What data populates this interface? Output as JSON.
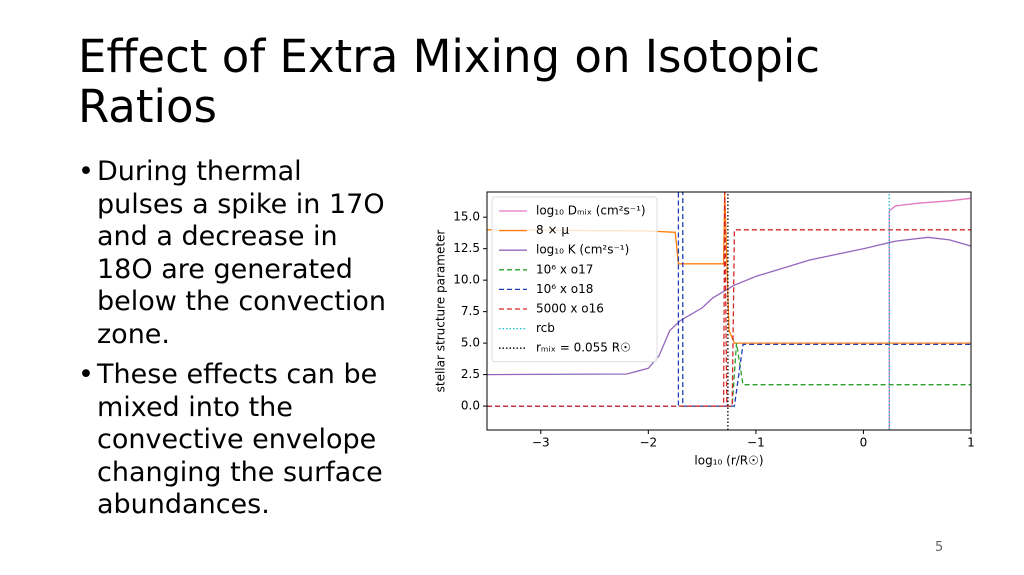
{
  "title": "Effect of Extra Mixing on Isotopic Ratios",
  "bullets": [
    "During thermal pulses a spike in 17O and a decrease in 18O are generated below the convection zone.",
    "These effects can be mixed into the convective envelope changing the surface abundances."
  ],
  "page_number": "5",
  "chart_data": {
    "type": "line",
    "xlabel": "log₁₀ (r/R☉)",
    "ylabel": "stellar structure parameter",
    "xlim": [
      -3.5,
      1
    ],
    "ylim": [
      -1.9,
      17.0
    ],
    "xticks": [
      {
        "value": -3,
        "label": "−3"
      },
      {
        "value": -2,
        "label": "−2"
      },
      {
        "value": -1,
        "label": "−1"
      },
      0,
      1
    ],
    "yticks": [
      {
        "value": 0,
        "label": "0.0"
      },
      2.5,
      {
        "value": 5,
        "label": "5.0"
      },
      7.5,
      {
        "value": 10,
        "label": "10.0"
      },
      12.5,
      {
        "value": 15,
        "label": "15.0"
      }
    ],
    "legend": "upper left",
    "series": [
      {
        "name": "log₁₀ Dₘᵢₓ (cm²s⁻¹)",
        "color": "#e377c2",
        "style": "solid",
        "x": [
          0.24,
          0.24,
          0.3,
          0.5,
          0.8,
          1.0
        ],
        "values": [
          -1.9,
          15.5,
          15.9,
          16.1,
          16.3,
          16.5
        ]
      },
      {
        "name": "8 × μ",
        "color": "#ff7f0e",
        "style": "solid",
        "x": [
          -3.5,
          -2.0,
          -1.75,
          -1.72,
          -1.3,
          -1.29,
          -1.25,
          -1.2,
          1.0
        ],
        "values": [
          14.0,
          13.9,
          13.8,
          11.3,
          11.3,
          17.0,
          6.0,
          5.0,
          5.0
        ]
      },
      {
        "name": "log₁₀ K (cm²s⁻¹)",
        "color": "#9467bd",
        "style": "solid",
        "x": [
          -3.5,
          -2.2,
          -2.0,
          -1.9,
          -1.8,
          -1.7,
          -1.5,
          -1.4,
          -1.2,
          -1.0,
          -0.5,
          0,
          0.3,
          0.6,
          0.8,
          1.0
        ],
        "values": [
          2.5,
          2.55,
          3.0,
          4.0,
          6.0,
          6.8,
          7.8,
          8.6,
          9.6,
          10.3,
          11.6,
          12.5,
          13.1,
          13.4,
          13.2,
          12.7
        ]
      },
      {
        "name": "10⁶ x o17",
        "color": "#2ca02c",
        "style": "dashed",
        "x": [
          -3.5,
          -1.22,
          -1.18,
          -1.12,
          1.0
        ],
        "values": [
          0,
          0,
          5.0,
          1.7,
          1.7
        ]
      },
      {
        "name": "10⁶ x o18",
        "color": "#1f3cb4",
        "style": "dashed",
        "x": [
          -3.5,
          -1.72,
          -1.72,
          -1.68,
          -1.68,
          -1.2,
          -1.12,
          1.0
        ],
        "values": [
          0,
          0,
          17.0,
          17.0,
          0,
          0,
          4.9,
          4.9
        ]
      },
      {
        "name": "5000 x o16",
        "color": "#d62728",
        "style": "dashed",
        "x": [
          -3.5,
          -1.3,
          -1.29,
          -1.27,
          -1.22,
          -1.2,
          1.0
        ],
        "values": [
          0,
          0,
          17.0,
          0,
          0,
          14.0,
          14.0
        ]
      },
      {
        "name": "rcb",
        "color": "#17becf",
        "style": "dotted",
        "x": [
          0.24,
          0.24
        ],
        "values": [
          -1.9,
          17.0
        ]
      },
      {
        "name": "rₘᵢₓ = 0.055 R☉",
        "color": "#000000",
        "style": "dotted",
        "x": [
          -1.26,
          -1.26
        ],
        "values": [
          -1.9,
          17.0
        ]
      }
    ]
  }
}
